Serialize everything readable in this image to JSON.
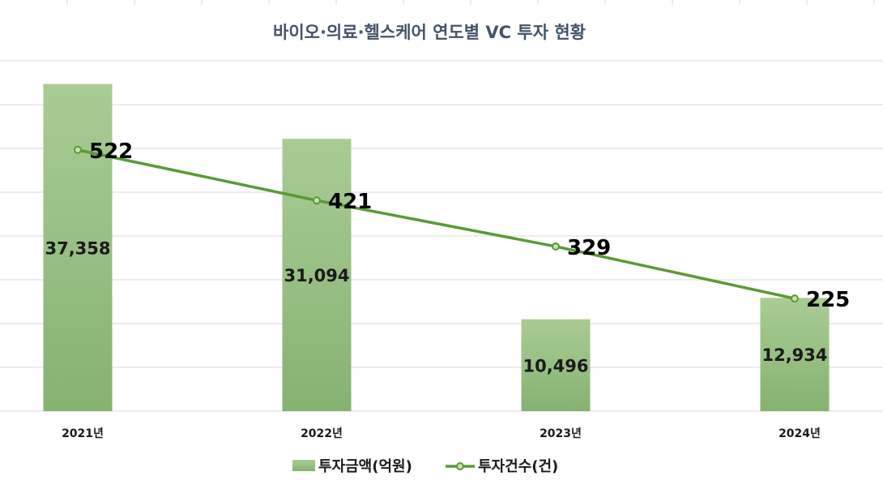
{
  "chart_data": {
    "type": "bar",
    "title": "바이오·의료·헬스케어 연도별 VC 투자 현황",
    "categories": [
      "2021년",
      "2022년",
      "2023년",
      "2024년"
    ],
    "series": [
      {
        "name": "투자금액(억원)",
        "type": "bar",
        "axis": "left",
        "values": [
          37358,
          31094,
          10496,
          12934
        ],
        "labels": [
          "37,358",
          "31,094",
          "10,496",
          "12,934"
        ]
      },
      {
        "name": "투자건수(건)",
        "type": "line",
        "axis": "right",
        "values": [
          522,
          421,
          329,
          225
        ],
        "labels": [
          "522",
          "421",
          "329",
          "225"
        ]
      }
    ],
    "y_left_range": [
      0,
      40000
    ],
    "y_right_range": [
      0,
      700
    ],
    "grid": true,
    "legend": "bottom",
    "colors": {
      "bar_top": "#a9cc95",
      "bar_bottom": "#86b272",
      "line": "#5a9a36",
      "marker_fill": "#c8e0ae",
      "grid": "#d9d9d9",
      "title": "#44546a"
    }
  }
}
